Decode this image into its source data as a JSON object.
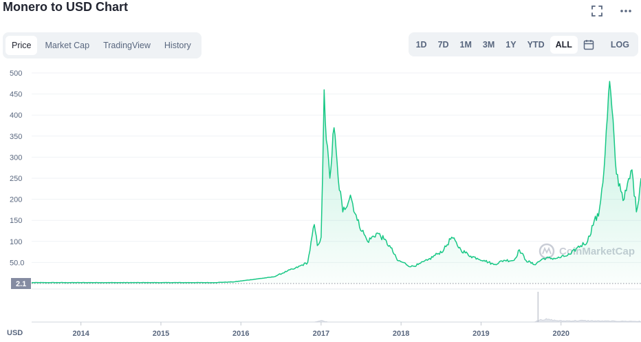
{
  "title": "Monero to USD Chart",
  "header_icons": [
    "fullscreen-icon",
    "more-icon"
  ],
  "tabs": [
    {
      "label": "Price",
      "active": true
    },
    {
      "label": "Market Cap",
      "active": false
    },
    {
      "label": "TradingView",
      "active": false
    },
    {
      "label": "History",
      "active": false
    }
  ],
  "ranges": [
    {
      "label": "1D",
      "active": false
    },
    {
      "label": "7D",
      "active": false
    },
    {
      "label": "1M",
      "active": false
    },
    {
      "label": "3M",
      "active": false
    },
    {
      "label": "1Y",
      "active": false
    },
    {
      "label": "YTD",
      "active": false
    },
    {
      "label": "ALL",
      "active": true
    }
  ],
  "calendar_icon": "calendar-icon",
  "log_label": "LOG",
  "watermark": "CoinMarketCap",
  "colors": {
    "line": "#16c784",
    "fill_top": "#16c784",
    "text": "#58667e",
    "badge": "#858ca2",
    "tab_bg": "#eff2f5"
  },
  "chart_data": {
    "type": "area",
    "currency_label": "USD",
    "y_ticks": [
      "500",
      "450",
      "400",
      "350",
      "300",
      "250",
      "200",
      "150",
      "100",
      "50.0"
    ],
    "ylim": [
      0,
      500
    ],
    "current_value_badge": "2.1",
    "x_ticks": [
      "2014",
      "2015",
      "2016",
      "2017",
      "2018",
      "2019",
      "2020"
    ],
    "xlim": [
      "2013-05-21",
      "2020-12-31"
    ],
    "grid": true,
    "series": [
      {
        "x": [
          "2013-05-21",
          "2014-01-01",
          "2014-06-01",
          "2015-01-01",
          "2015-06-01",
          "2015-09-01",
          "2015-12-01",
          "2016-03-01",
          "2016-06-01",
          "2016-08-01",
          "2016-09-01",
          "2016-11-01",
          "2016-12-01",
          "2016-12-15",
          "2017-01-01",
          "2017-01-08",
          "2017-01-15",
          "2017-01-25",
          "2017-02-10",
          "2017-03-01",
          "2017-03-20",
          "2017-04-10",
          "2017-05-15",
          "2017-06-15",
          "2017-08-01",
          "2017-09-15",
          "2017-10-15",
          "2017-11-15",
          "2017-12-15",
          "2018-01-10",
          "2018-02-15",
          "2018-03-20",
          "2018-05-01",
          "2018-06-15",
          "2018-07-15",
          "2018-08-20",
          "2018-10-01",
          "2018-11-15",
          "2018-12-15",
          "2019-01-15",
          "2019-03-01",
          "2019-04-15",
          "2019-06-01",
          "2019-06-25",
          "2019-07-25",
          "2019-09-01",
          "2019-10-15",
          "2019-12-15",
          "2020-01-20",
          "2020-02-15",
          "2020-03-15",
          "2020-05-01",
          "2020-06-01",
          "2020-06-20",
          "2020-07-15",
          "2020-08-10",
          "2020-09-10",
          "2020-10-15",
          "2020-11-20",
          "2020-12-10",
          "2020-12-31"
        ],
        "values": [
          2.1,
          2.1,
          2.1,
          2.1,
          2.1,
          2.1,
          4,
          10,
          16,
          30,
          35,
          50,
          140,
          90,
          110,
          260,
          460,
          340,
          250,
          370,
          250,
          170,
          210,
          150,
          100,
          120,
          105,
          85,
          55,
          50,
          40,
          45,
          55,
          70,
          80,
          110,
          80,
          65,
          60,
          55,
          45,
          55,
          55,
          80,
          55,
          45,
          60,
          60,
          65,
          70,
          85,
          100,
          150,
          160,
          270,
          480,
          260,
          200,
          270,
          170,
          250
        ]
      }
    ],
    "volume_series": {
      "x": [
        "2013-05-21",
        "2016-12-01",
        "2017-01-01",
        "2017-02-01",
        "2019-09-01",
        "2019-10-01",
        "2020-01-01",
        "2020-04-01",
        "2020-07-01",
        "2020-10-01",
        "2020-12-31"
      ],
      "values": [
        0,
        0,
        0.5,
        0,
        0,
        1,
        0.4,
        0.5,
        0.35,
        0.3,
        0.25
      ]
    },
    "volume_spike": {
      "x": "2019-09-18",
      "value": 10
    }
  }
}
